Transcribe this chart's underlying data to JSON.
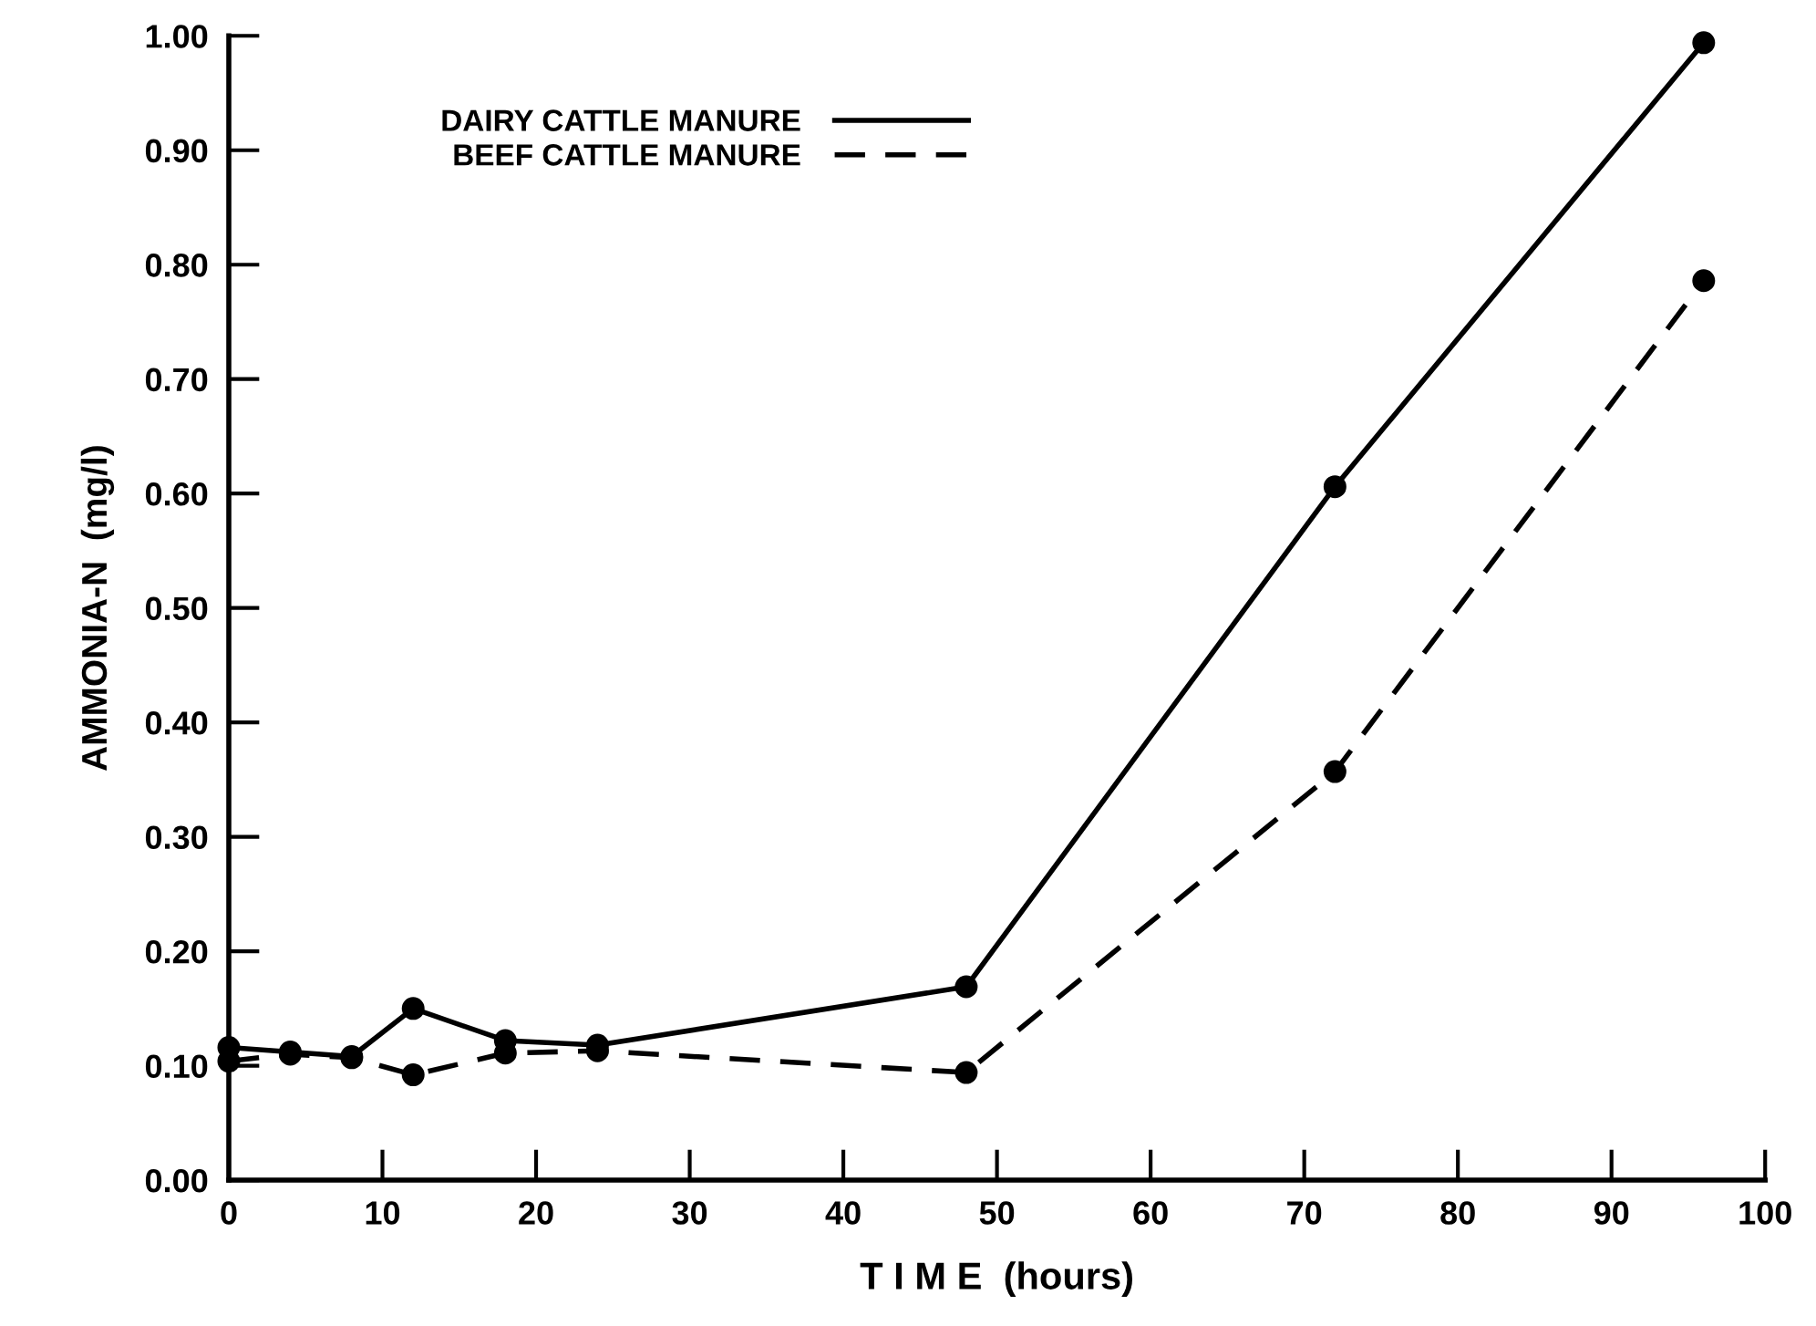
{
  "chart_data": {
    "type": "line",
    "xlabel": "T I M E  (hours)",
    "ylabel": "AMMONIA-N  (mg/l)",
    "xlim": [
      0,
      100
    ],
    "ylim": [
      0,
      1
    ],
    "xticks": [
      0,
      10,
      20,
      30,
      40,
      50,
      60,
      70,
      80,
      90,
      100
    ],
    "yticks": [
      {
        "value": 0,
        "label": "0.00"
      },
      {
        "value": 0.1,
        "label": "0.10"
      },
      {
        "value": 0.2,
        "label": "0.20"
      },
      {
        "value": 0.3,
        "label": "0.30"
      },
      {
        "value": 0.4,
        "label": "0.40"
      },
      {
        "value": 0.5,
        "label": "0.50"
      },
      {
        "value": 0.6,
        "label": "0.60"
      },
      {
        "value": 0.7,
        "label": "0.70"
      },
      {
        "value": 0.8,
        "label": "0.80"
      },
      {
        "value": 0.9,
        "label": "0.90"
      },
      {
        "value": 1,
        "label": "1.00"
      }
    ],
    "x": [
      0,
      4,
      8,
      12,
      18,
      24,
      48,
      72,
      96
    ],
    "series": [
      {
        "name": "DAIRY CATTLE MANURE",
        "color": "#000000",
        "line_style": "solid",
        "values": [
          0.116,
          0.112,
          0.108,
          0.15,
          0.122,
          0.118,
          0.169,
          0.606,
          0.994
        ]
      },
      {
        "name": "BEEF CATTLE MANURE",
        "color": "#000000",
        "line_style": "dashed",
        "values": [
          0.104,
          0.11,
          0.107,
          0.092,
          0.111,
          0.113,
          0.094,
          0.357,
          0.786
        ]
      }
    ],
    "marker": "circle",
    "grid": false,
    "legend": "top left"
  }
}
